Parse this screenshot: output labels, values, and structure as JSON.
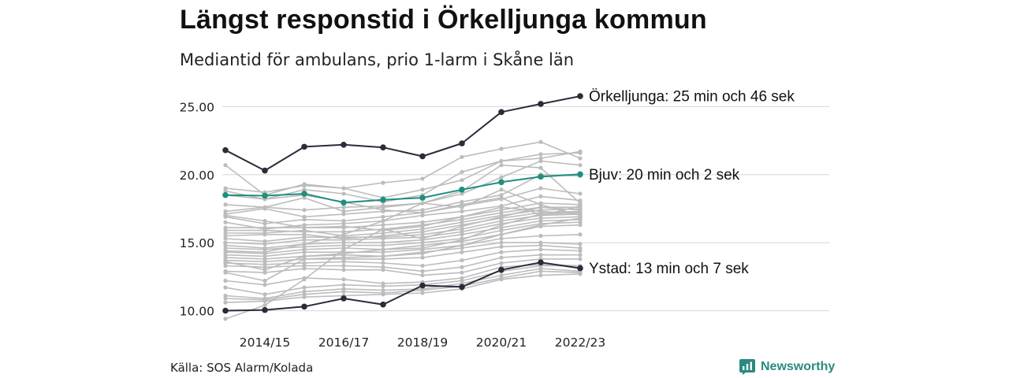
{
  "title": "Längst responstid i Örkelljunga kommun",
  "subtitle": "Mediantid för ambulans, prio 1-larm i Skåne län",
  "source": "Källa: SOS Alarm/Kolada",
  "brand": {
    "name": "Newsworthy",
    "icon": "newsworthy-logo-icon",
    "color": "#2a8a80"
  },
  "chart_data": {
    "type": "line",
    "x": [
      "2013/14",
      "2014/15",
      "2015/16",
      "2016/17",
      "2017/18",
      "2018/19",
      "2019/20",
      "2020/21",
      "2021/22",
      "2022/23"
    ],
    "x_tick_labels": [
      "2014/15",
      "2016/17",
      "2018/19",
      "2020/21",
      "2022/23"
    ],
    "ylim": [
      10,
      26.5
    ],
    "y_ticks": [
      10,
      15,
      20,
      25
    ],
    "y_tick_labels": [
      "10.00",
      "15.00",
      "20.00",
      "25.00"
    ],
    "grid": true,
    "highlight_series": [
      {
        "values": [
          21.8,
          20.3,
          22.05,
          22.2,
          22.0,
          21.35,
          22.3,
          24.6,
          25.2,
          25.77
        ],
        "color": "#2d2b3a",
        "label": "Örkelljunga: 25 min och 46 sek"
      },
      {
        "values": [
          18.5,
          18.45,
          18.6,
          17.95,
          18.15,
          18.3,
          18.9,
          19.45,
          19.85,
          20.03
        ],
        "color": "#1f8f80",
        "label": "Bjuv: 20 min och 2 sek"
      },
      {
        "values": [
          10.0,
          10.05,
          10.3,
          10.9,
          10.45,
          11.85,
          11.75,
          13.0,
          13.55,
          13.12
        ],
        "color": "#2d2b3a",
        "label": "Ystad: 13 min och 7 sek"
      }
    ],
    "background_series": [
      {
        "values": [
          20.7,
          18.5,
          19.3,
          19.0,
          18.3,
          18.9,
          19.6,
          21.0,
          21.5,
          21.6
        ]
      },
      {
        "values": [
          19.0,
          18.7,
          19.2,
          19.0,
          19.4,
          19.7,
          21.3,
          21.9,
          22.4,
          21.2
        ]
      },
      {
        "values": [
          18.8,
          18.2,
          18.9,
          18.6,
          18.0,
          18.5,
          20.2,
          21.0,
          21.2,
          21.7
        ]
      },
      {
        "values": [
          17.8,
          17.6,
          17.4,
          17.6,
          17.7,
          17.9,
          18.6,
          19.8,
          21.0,
          20.7
        ]
      },
      {
        "values": [
          17.3,
          17.6,
          18.3,
          17.3,
          17.6,
          17.9,
          18.8,
          20.7,
          20.5,
          17.9
        ]
      },
      {
        "values": [
          17.1,
          17.5,
          16.9,
          17.1,
          17.3,
          17.4,
          18.0,
          18.5,
          20.0,
          19.9
        ]
      },
      {
        "values": [
          16.9,
          16.4,
          16.7,
          16.6,
          16.9,
          17.2,
          17.7,
          18.2,
          19.0,
          18.6
        ]
      },
      {
        "values": [
          16.5,
          16.0,
          16.3,
          16.4,
          16.6,
          17.0,
          17.3,
          17.7,
          18.4,
          18.1
        ]
      },
      {
        "values": [
          16.1,
          16.1,
          16.1,
          16.1,
          16.3,
          16.5,
          16.9,
          17.4,
          17.9,
          17.8
        ]
      },
      {
        "values": [
          15.9,
          15.9,
          15.8,
          15.8,
          16.0,
          16.3,
          16.7,
          17.2,
          17.6,
          17.6
        ]
      },
      {
        "values": [
          15.7,
          15.7,
          15.9,
          15.5,
          15.7,
          16.0,
          16.5,
          17.0,
          17.4,
          17.5
        ]
      },
      {
        "values": [
          15.5,
          15.6,
          15.6,
          15.3,
          15.5,
          15.8,
          16.3,
          16.8,
          17.2,
          17.3
        ]
      },
      {
        "values": [
          15.3,
          15.1,
          15.4,
          15.4,
          15.4,
          15.6,
          16.0,
          16.6,
          17.0,
          17.1
        ]
      },
      {
        "values": [
          15.0,
          14.9,
          15.2,
          15.2,
          15.3,
          15.4,
          15.8,
          16.4,
          16.8,
          16.9
        ]
      },
      {
        "values": [
          14.8,
          14.6,
          14.9,
          15.0,
          15.0,
          15.2,
          15.6,
          16.1,
          16.6,
          16.7
        ]
      },
      {
        "values": [
          14.6,
          14.5,
          14.7,
          14.8,
          14.8,
          15.0,
          15.3,
          15.9,
          16.4,
          16.5
        ]
      },
      {
        "values": [
          14.3,
          14.2,
          14.5,
          14.6,
          14.5,
          14.8,
          15.1,
          15.6,
          16.2,
          16.3
        ]
      },
      {
        "values": [
          14.1,
          14.0,
          14.3,
          14.3,
          14.3,
          14.5,
          14.8,
          15.3,
          15.5,
          15.6
        ]
      },
      {
        "values": [
          13.9,
          13.8,
          14.0,
          14.1,
          14.0,
          14.3,
          14.6,
          15.0,
          15.0,
          14.9
        ]
      },
      {
        "values": [
          13.7,
          13.6,
          13.8,
          13.8,
          13.8,
          13.9,
          14.3,
          14.7,
          14.8,
          14.6
        ]
      },
      {
        "values": [
          13.5,
          13.4,
          13.5,
          13.6,
          13.5,
          13.3,
          13.7,
          14.3,
          14.5,
          14.4
        ]
      },
      {
        "values": [
          13.3,
          13.2,
          13.3,
          13.3,
          13.2,
          12.9,
          13.2,
          13.9,
          14.1,
          14.1
        ]
      },
      {
        "values": [
          12.9,
          12.8,
          13.1,
          13.0,
          13.0,
          12.6,
          12.8,
          13.5,
          13.8,
          13.8
        ]
      },
      {
        "values": [
          12.2,
          11.9,
          12.4,
          12.3,
          12.0,
          12.1,
          12.4,
          13.2,
          13.4,
          13.3
        ]
      },
      {
        "values": [
          11.7,
          11.2,
          11.7,
          11.9,
          11.8,
          11.9,
          12.2,
          12.9,
          13.3,
          13.3
        ]
      },
      {
        "values": [
          11.1,
          10.9,
          11.4,
          11.6,
          11.5,
          11.6,
          12.0,
          12.6,
          13.1,
          12.9
        ]
      },
      {
        "values": [
          10.9,
          10.8,
          11.2,
          11.4,
          11.3,
          11.5,
          11.8,
          12.4,
          12.9,
          12.8
        ]
      },
      {
        "values": [
          10.6,
          10.7,
          11.0,
          11.1,
          11.2,
          11.3,
          11.6,
          12.3,
          12.6,
          12.7
        ]
      },
      {
        "values": [
          9.4,
          10.4,
          12.3,
          14.5,
          16.0,
          15.3,
          16.2,
          16.9,
          17.6,
          17.4
        ]
      },
      {
        "values": [
          13.6,
          13.0,
          14.0,
          14.2,
          14.5,
          14.6,
          15.2,
          16.3,
          17.1,
          17.2
        ]
      },
      {
        "values": [
          12.8,
          12.2,
          13.8,
          13.9,
          14.0,
          14.2,
          14.8,
          15.6,
          16.3,
          16.8
        ]
      },
      {
        "values": [
          14.4,
          14.3,
          14.9,
          15.6,
          16.6,
          17.9,
          17.6,
          18.9,
          17.8,
          17.0
        ]
      },
      {
        "values": [
          17.0,
          16.6,
          16.1,
          16.2,
          15.9,
          16.2,
          16.9,
          17.6,
          17.3,
          17.1
        ]
      },
      {
        "values": [
          18.5,
          18.2,
          18.5,
          18.0,
          17.4,
          17.2,
          17.8,
          18.3,
          17.0,
          17.7
        ]
      }
    ],
    "colors": {
      "grid": "#dedede",
      "background_line": "#bcbcbc",
      "axis_text": "#222222"
    }
  }
}
